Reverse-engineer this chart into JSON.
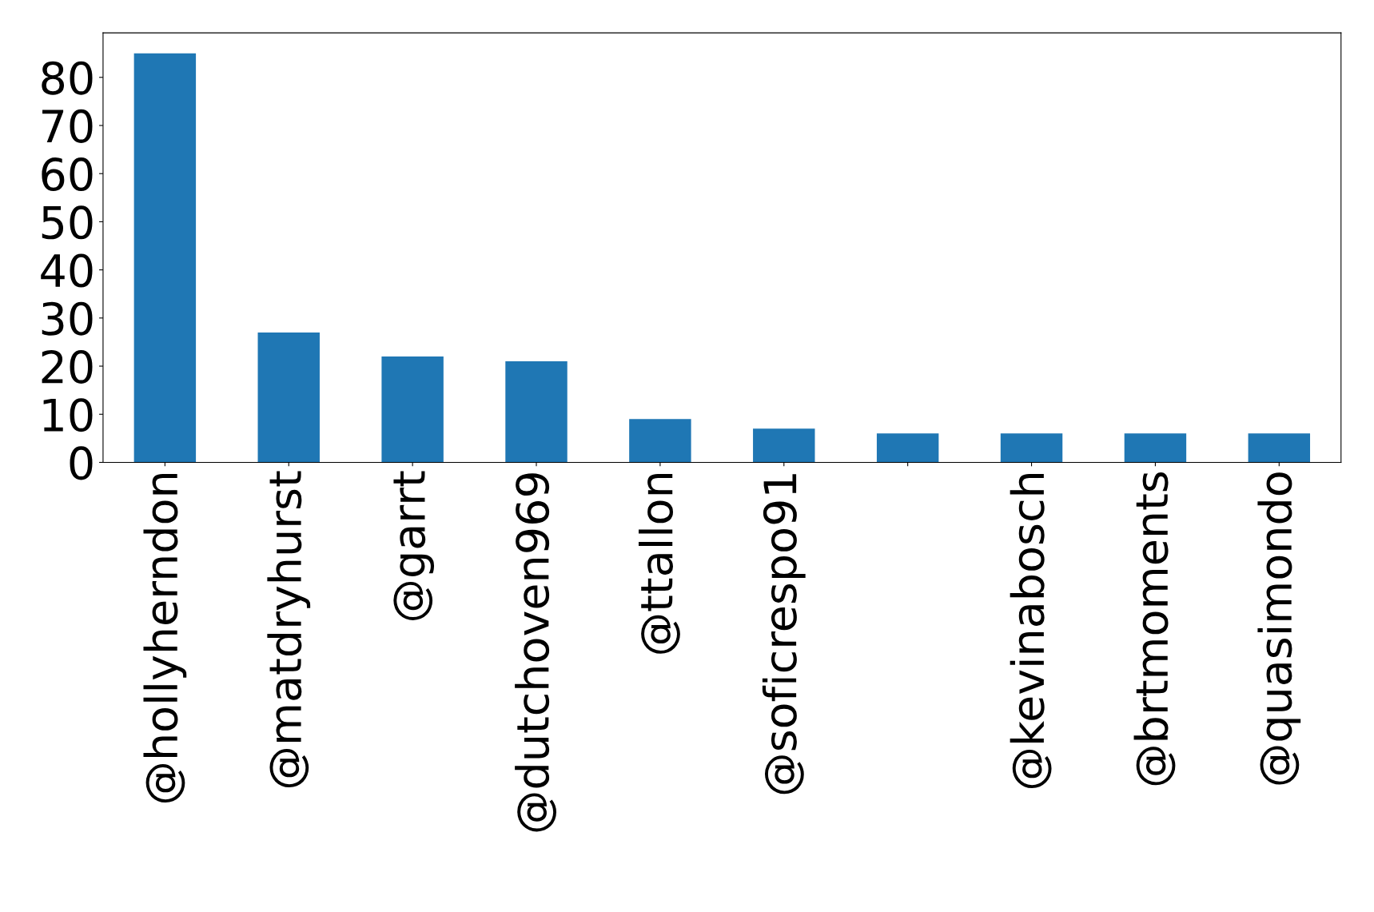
{
  "chart_data": {
    "type": "bar",
    "categories": [
      "@hollyherndon",
      "@matdryhurst",
      "@garrt",
      "@dutchoven969",
      "@ttallon",
      "@soficrespo91",
      null,
      "@kevinabosch",
      "@brtmoments",
      "@quasimondo"
    ],
    "values": [
      85,
      27,
      22,
      21,
      9,
      7,
      6,
      6,
      6,
      6
    ],
    "color": "#1f77b4",
    "ylim": [
      0,
      89.25
    ],
    "yticks": [
      0,
      10,
      20,
      30,
      40,
      50,
      60,
      70,
      80
    ],
    "grid": false
  }
}
